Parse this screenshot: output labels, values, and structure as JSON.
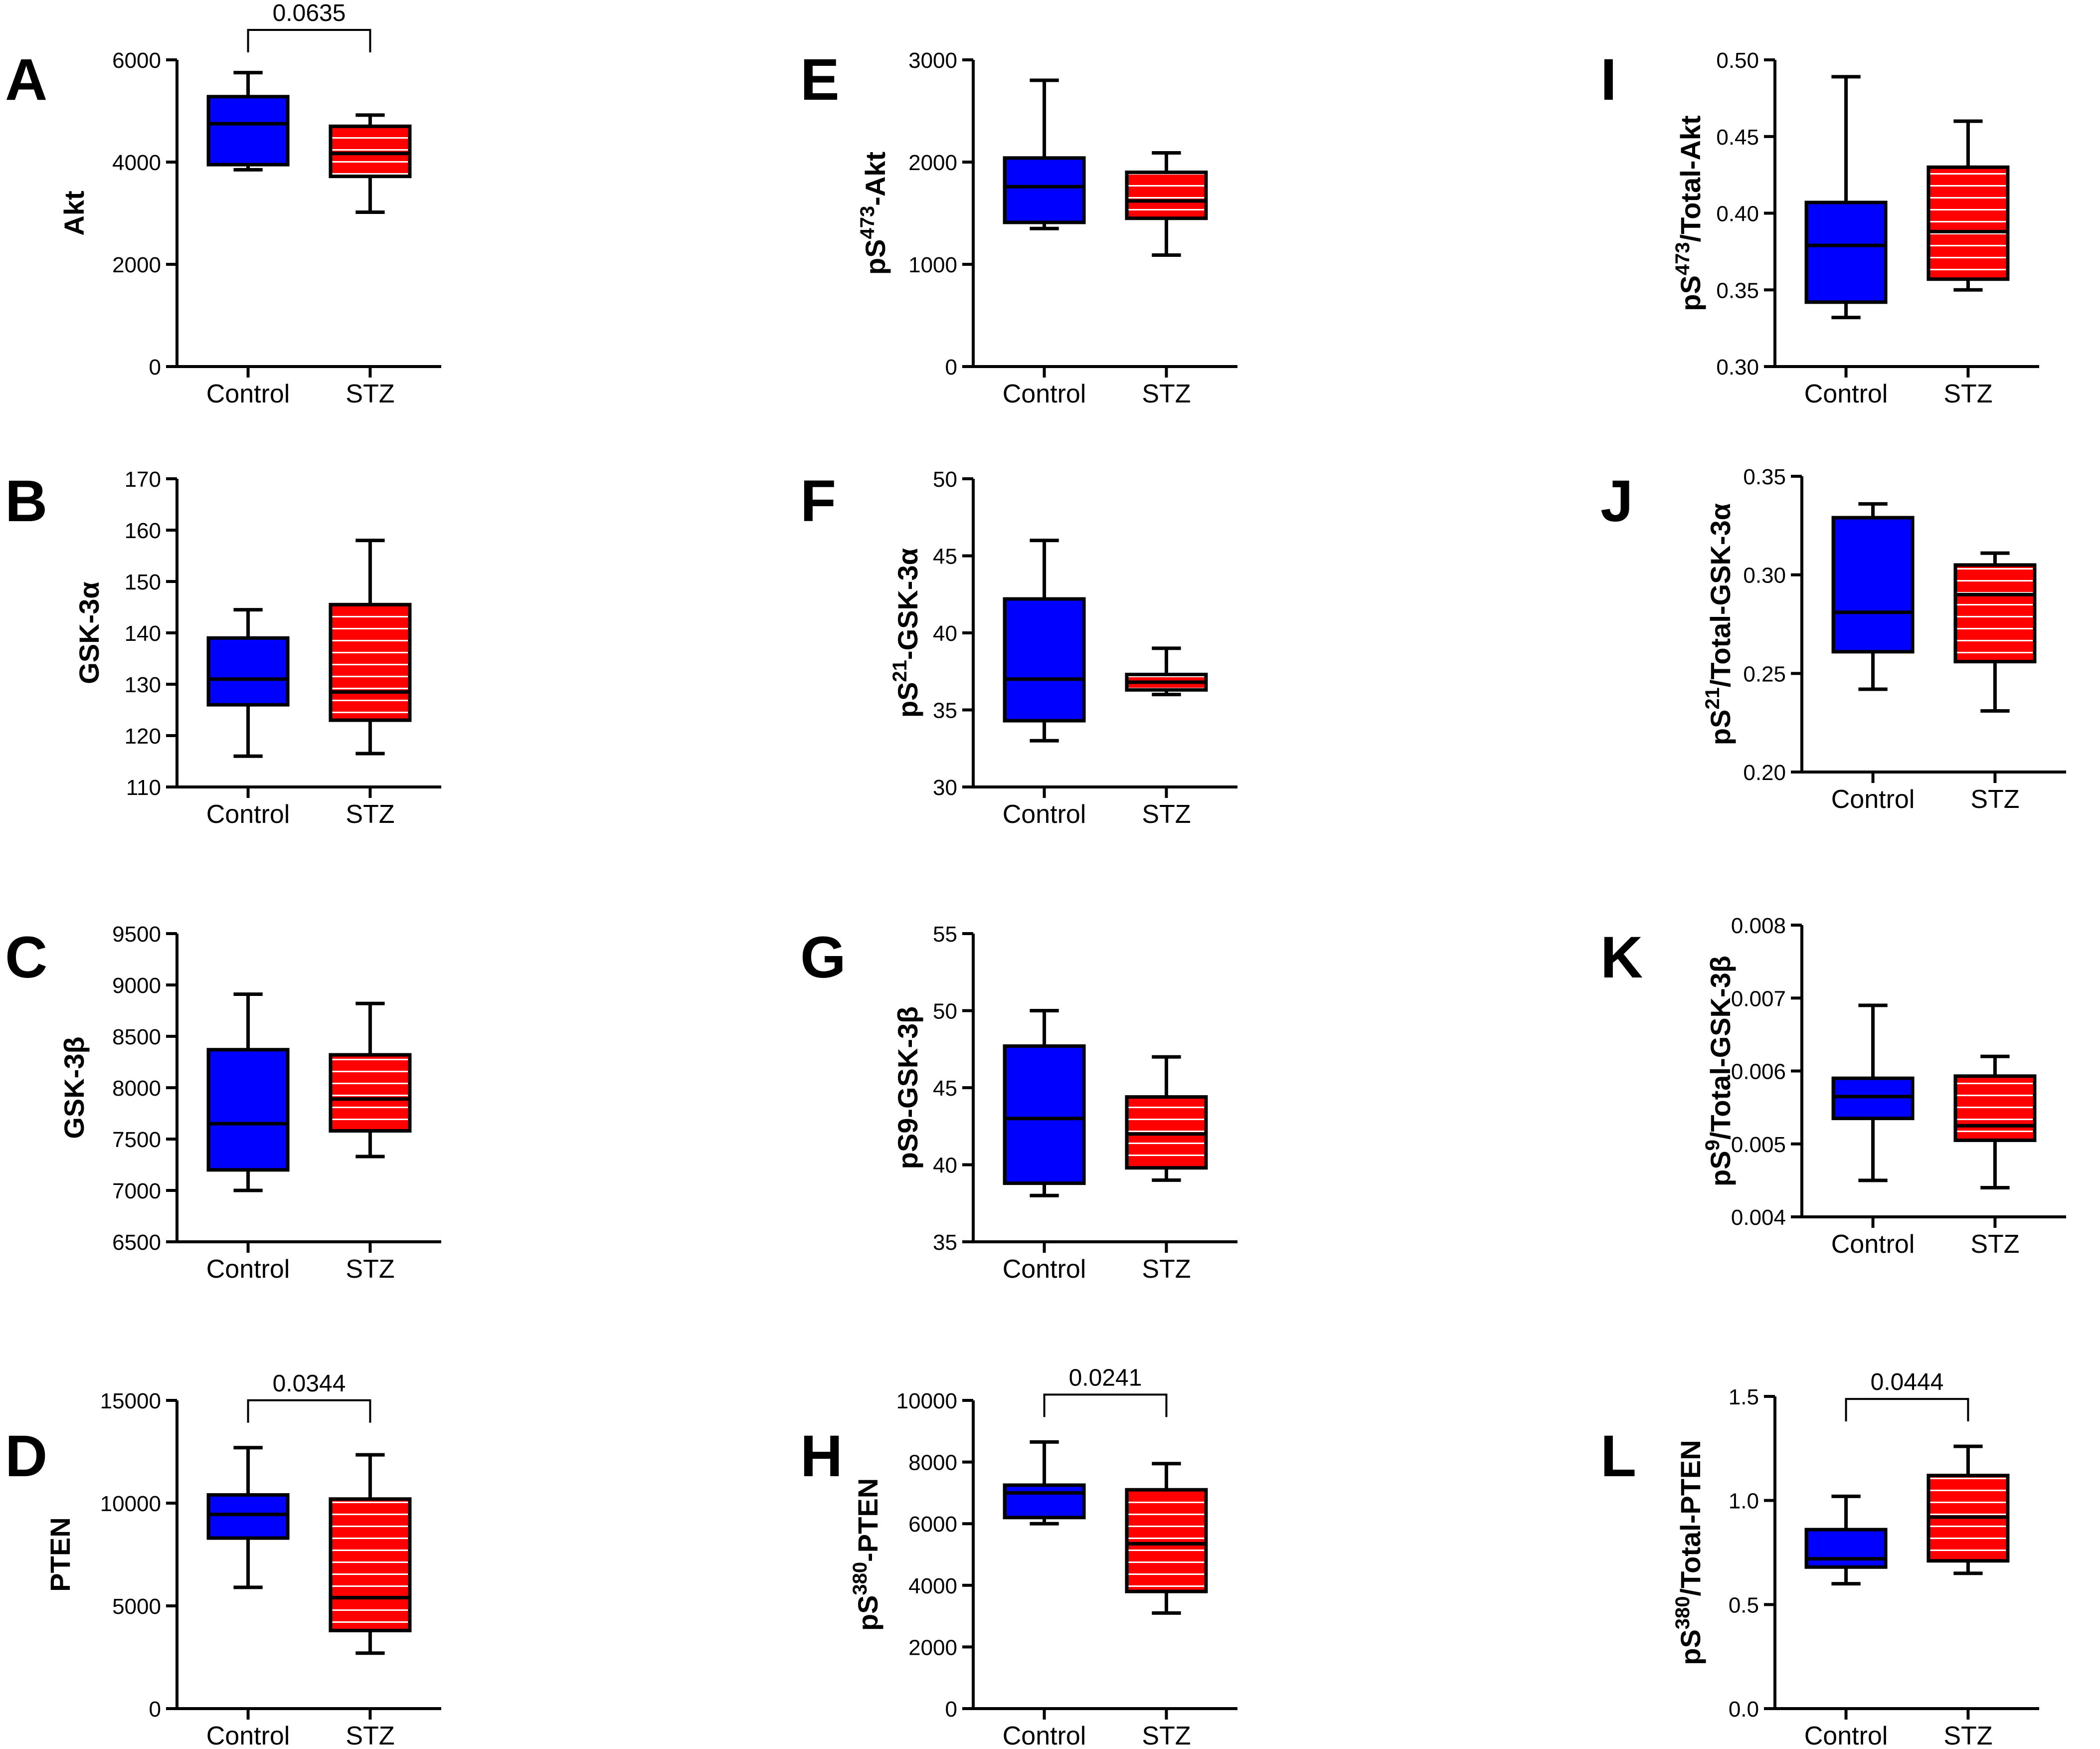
{
  "colors": {
    "control": "#0000ff",
    "stz": "#ff0000",
    "stroke": "#000000",
    "stripe": "#ffffff"
  },
  "chart_data": [
    {
      "id": "A",
      "letter": "A",
      "type": "box",
      "ylabel": "Akt",
      "ylim": [
        0,
        6000
      ],
      "ticks": [
        0,
        2000,
        4000,
        6000
      ],
      "tick_labels": [
        "0",
        "2000",
        "4000",
        "6000"
      ],
      "categories": [
        "Control",
        "STZ"
      ],
      "series": [
        {
          "name": "Control",
          "min": 3850,
          "q1": 3950,
          "median": 4750,
          "q3": 5280,
          "max": 5750
        },
        {
          "name": "STZ",
          "min": 3020,
          "q1": 3720,
          "median": 4170,
          "q3": 4700,
          "max": 4920
        }
      ],
      "pvalue": "0.0635"
    },
    {
      "id": "B",
      "letter": "B",
      "type": "box",
      "ylabel": "GSK-3α",
      "ylim": [
        110,
        170
      ],
      "ticks": [
        110,
        120,
        130,
        140,
        150,
        160,
        170
      ],
      "tick_labels": [
        "110",
        "120",
        "130",
        "140",
        "150",
        "160",
        "170"
      ],
      "categories": [
        "Control",
        "STZ"
      ],
      "series": [
        {
          "name": "Control",
          "min": 116,
          "q1": 126,
          "median": 131,
          "q3": 139,
          "max": 144.5
        },
        {
          "name": "STZ",
          "min": 116.5,
          "q1": 123,
          "median": 128.5,
          "q3": 145.5,
          "max": 158
        }
      ],
      "pvalue": null
    },
    {
      "id": "C",
      "letter": "C",
      "type": "box",
      "ylabel": "GSK-3β",
      "ylim": [
        6500,
        9500
      ],
      "ticks": [
        6500,
        7000,
        7500,
        8000,
        8500,
        9000,
        9500
      ],
      "tick_labels": [
        "6500",
        "7000",
        "7500",
        "8000",
        "8500",
        "9000",
        "9500"
      ],
      "categories": [
        "Control",
        "STZ"
      ],
      "series": [
        {
          "name": "Control",
          "min": 7000,
          "q1": 7200,
          "median": 7650,
          "q3": 8370,
          "max": 8910
        },
        {
          "name": "STZ",
          "min": 7330,
          "q1": 7580,
          "median": 7890,
          "q3": 8320,
          "max": 8820
        }
      ],
      "pvalue": null
    },
    {
      "id": "D",
      "letter": "D",
      "type": "box",
      "ylabel": "PTEN",
      "ylim": [
        0,
        15000
      ],
      "ticks": [
        0,
        5000,
        10000,
        15000
      ],
      "tick_labels": [
        "0",
        "5000",
        "10000",
        "15000"
      ],
      "categories": [
        "Control",
        "STZ"
      ],
      "series": [
        {
          "name": "Control",
          "min": 5900,
          "q1": 8300,
          "median": 9450,
          "q3": 10400,
          "max": 12700
        },
        {
          "name": "STZ",
          "min": 2700,
          "q1": 3800,
          "median": 5400,
          "q3": 10200,
          "max": 12350
        }
      ],
      "pvalue": "0.0344"
    },
    {
      "id": "E",
      "letter": "E",
      "type": "box",
      "ylabel_main": "pS",
      "ylabel_sup": "473",
      "ylabel_tail": "-Akt",
      "ylim": [
        0,
        3000
      ],
      "ticks": [
        0,
        1000,
        2000,
        3000
      ],
      "tick_labels": [
        "0",
        "1000",
        "2000",
        "3000"
      ],
      "categories": [
        "Control",
        "STZ"
      ],
      "series": [
        {
          "name": "Control",
          "min": 1350,
          "q1": 1410,
          "median": 1760,
          "q3": 2040,
          "max": 2800
        },
        {
          "name": "STZ",
          "min": 1090,
          "q1": 1450,
          "median": 1620,
          "q3": 1900,
          "max": 2090
        }
      ],
      "pvalue": null
    },
    {
      "id": "F",
      "letter": "F",
      "type": "box",
      "ylabel_main": "pS",
      "ylabel_sup": "21",
      "ylabel_tail": "-GSK-3α",
      "ylim": [
        30,
        50
      ],
      "ticks": [
        30,
        35,
        40,
        45,
        50
      ],
      "tick_labels": [
        "30",
        "35",
        "40",
        "45",
        "50"
      ],
      "categories": [
        "Control",
        "STZ"
      ],
      "series": [
        {
          "name": "Control",
          "min": 33,
          "q1": 34.3,
          "median": 37,
          "q3": 42.2,
          "max": 46
        },
        {
          "name": "STZ",
          "min": 36,
          "q1": 36.3,
          "median": 36.8,
          "q3": 37.3,
          "max": 39
        }
      ],
      "pvalue": null
    },
    {
      "id": "G",
      "letter": "G",
      "type": "box",
      "ylabel": "pS9-GSK-3β",
      "ylim": [
        35,
        55
      ],
      "ticks": [
        35,
        40,
        45,
        50,
        55
      ],
      "tick_labels": [
        "35",
        "40",
        "45",
        "50",
        "55"
      ],
      "categories": [
        "Control",
        "STZ"
      ],
      "series": [
        {
          "name": "Control",
          "min": 38,
          "q1": 38.8,
          "median": 43,
          "q3": 47.7,
          "max": 50
        },
        {
          "name": "STZ",
          "min": 39,
          "q1": 39.8,
          "median": 42,
          "q3": 44.4,
          "max": 47
        }
      ],
      "pvalue": null
    },
    {
      "id": "H",
      "letter": "H",
      "type": "box",
      "ylabel_main": "pS",
      "ylabel_sup": "380",
      "ylabel_tail": "-PTEN",
      "ylim": [
        0,
        10000
      ],
      "ticks": [
        0,
        2000,
        4000,
        6000,
        8000,
        10000
      ],
      "tick_labels": [
        "0",
        "2000",
        "4000",
        "6000",
        "8000",
        "10000"
      ],
      "categories": [
        "Control",
        "STZ"
      ],
      "series": [
        {
          "name": "Control",
          "min": 6000,
          "q1": 6200,
          "median": 7000,
          "q3": 7250,
          "max": 8650
        },
        {
          "name": "STZ",
          "min": 3100,
          "q1": 3800,
          "median": 5350,
          "q3": 7100,
          "max": 7950
        }
      ],
      "pvalue": "0.0241"
    },
    {
      "id": "I",
      "letter": "I",
      "type": "box",
      "ylabel_main": "pS",
      "ylabel_sup": "473",
      "ylabel_tail": "/Total-Akt",
      "ylim": [
        0.3,
        0.5
      ],
      "ticks": [
        0.3,
        0.35,
        0.4,
        0.45,
        0.5
      ],
      "tick_labels": [
        "0.30",
        "0.35",
        "0.40",
        "0.45",
        "0.50"
      ],
      "categories": [
        "Control",
        "STZ"
      ],
      "series": [
        {
          "name": "Control",
          "min": 0.332,
          "q1": 0.342,
          "median": 0.379,
          "q3": 0.407,
          "max": 0.489
        },
        {
          "name": "STZ",
          "min": 0.35,
          "q1": 0.357,
          "median": 0.388,
          "q3": 0.43,
          "max": 0.46
        }
      ],
      "pvalue": null
    },
    {
      "id": "J",
      "letter": "J",
      "type": "box",
      "ylabel_main": "pS",
      "ylabel_sup": "21",
      "ylabel_tail": "/Total-GSK-3α",
      "ylim": [
        0.2,
        0.35
      ],
      "ticks": [
        0.2,
        0.25,
        0.3,
        0.35
      ],
      "tick_labels": [
        "0.20",
        "0.25",
        "0.30",
        "0.35"
      ],
      "categories": [
        "Control",
        "STZ"
      ],
      "series": [
        {
          "name": "Control",
          "min": 0.242,
          "q1": 0.261,
          "median": 0.281,
          "q3": 0.329,
          "max": 0.336
        },
        {
          "name": "STZ",
          "min": 0.231,
          "q1": 0.256,
          "median": 0.29,
          "q3": 0.305,
          "max": 0.311
        }
      ],
      "pvalue": null
    },
    {
      "id": "K",
      "letter": "K",
      "type": "box",
      "ylabel_main": "pS",
      "ylabel_sup": "9",
      "ylabel_tail": "/Total-GSK-3β",
      "ylim": [
        0.004,
        0.008
      ],
      "ticks": [
        0.004,
        0.005,
        0.006,
        0.007,
        0.008
      ],
      "tick_labels": [
        "0.004",
        "0.005",
        "0.006",
        "0.007",
        "0.008"
      ],
      "categories": [
        "Control",
        "STZ"
      ],
      "series": [
        {
          "name": "Control",
          "min": 0.0045,
          "q1": 0.00535,
          "median": 0.00565,
          "q3": 0.0059,
          "max": 0.0069
        },
        {
          "name": "STZ",
          "min": 0.0044,
          "q1": 0.00505,
          "median": 0.00525,
          "q3": 0.00593,
          "max": 0.0062
        }
      ],
      "pvalue": null
    },
    {
      "id": "L",
      "letter": "L",
      "type": "box",
      "ylabel_main": "pS",
      "ylabel_sup": "380",
      "ylabel_tail": "/Total-PTEN",
      "ylim": [
        0.0,
        1.5
      ],
      "ticks": [
        0.0,
        0.5,
        1.0,
        1.5
      ],
      "tick_labels": [
        "0.0",
        "0.5",
        "1.0",
        "1.5"
      ],
      "categories": [
        "Control",
        "STZ"
      ],
      "series": [
        {
          "name": "Control",
          "min": 0.6,
          "q1": 0.68,
          "median": 0.72,
          "q3": 0.86,
          "max": 1.02
        },
        {
          "name": "STZ",
          "min": 0.65,
          "q1": 0.71,
          "median": 0.92,
          "q3": 1.12,
          "max": 1.26
        }
      ],
      "pvalue": "0.0444"
    }
  ]
}
